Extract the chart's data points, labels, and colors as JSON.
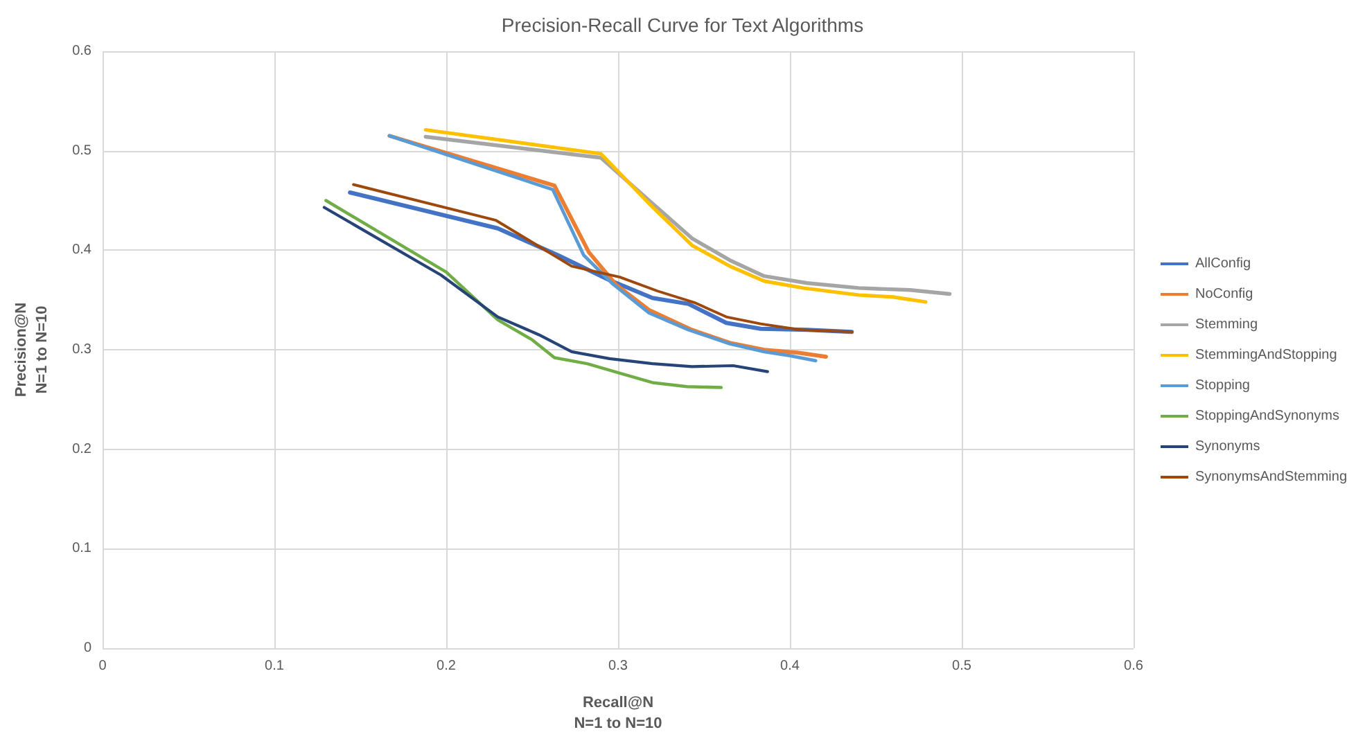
{
  "chart_data": {
    "type": "line",
    "title": "Precision-Recall Curve for Text Algorithms",
    "xlabel": "Recall@N\nN=1 to N=10",
    "ylabel": "Precision@N\nN=1 to N=10",
    "xlim": [
      0,
      0.6
    ],
    "xticks": [
      0,
      0.1,
      0.2,
      0.3,
      0.4,
      0.5,
      0.6
    ],
    "ylim": [
      0,
      0.6
    ],
    "yticks": [
      0,
      0.1,
      0.2,
      0.3,
      0.4,
      0.5,
      0.6
    ],
    "grid": true,
    "legend": "right",
    "marker": "none",
    "line_style": "solid",
    "series": [
      {
        "name": "AllConfig",
        "color": "#4472c4",
        "x": [
          0.144,
          0.23,
          0.265,
          0.295,
          0.32,
          0.341,
          0.363,
          0.383,
          0.41,
          0.436
        ],
        "values": [
          0.458,
          0.422,
          0.395,
          0.37,
          0.352,
          0.346,
          0.327,
          0.321,
          0.32,
          0.318
        ]
      },
      {
        "name": "NoConfig",
        "color": "#ed7d31",
        "x": [
          0.167,
          0.263,
          0.283,
          0.299,
          0.318,
          0.343,
          0.365,
          0.385,
          0.405,
          0.421
        ],
        "values": [
          0.515,
          0.465,
          0.398,
          0.365,
          0.34,
          0.32,
          0.307,
          0.3,
          0.297,
          0.293
        ]
      },
      {
        "name": "Stemming",
        "color": "#a5a5a5",
        "x": [
          0.188,
          0.29,
          0.32,
          0.343,
          0.365,
          0.385,
          0.41,
          0.44,
          0.47,
          0.493
        ],
        "values": [
          0.514,
          0.493,
          0.447,
          0.412,
          0.39,
          0.374,
          0.367,
          0.362,
          0.36,
          0.356
        ]
      },
      {
        "name": "StemmingAndStopping",
        "color": "#ffc000",
        "x": [
          0.188,
          0.29,
          0.318,
          0.343,
          0.365,
          0.385,
          0.408,
          0.44,
          0.46,
          0.479
        ],
        "values": [
          0.521,
          0.497,
          0.447,
          0.405,
          0.384,
          0.369,
          0.362,
          0.355,
          0.353,
          0.348
        ]
      },
      {
        "name": "Stopping",
        "color": "#5b9bd5",
        "x": [
          0.167,
          0.262,
          0.28,
          0.297,
          0.318,
          0.341,
          0.365,
          0.385,
          0.4,
          0.415
        ],
        "values": [
          0.515,
          0.461,
          0.395,
          0.366,
          0.337,
          0.32,
          0.306,
          0.298,
          0.294,
          0.289
        ]
      },
      {
        "name": "StoppingAndSynonyms",
        "color": "#70ad47",
        "x": [
          0.13,
          0.2,
          0.23,
          0.25,
          0.263,
          0.282,
          0.3,
          0.32,
          0.34,
          0.36
        ],
        "values": [
          0.45,
          0.378,
          0.33,
          0.31,
          0.292,
          0.286,
          0.277,
          0.267,
          0.263,
          0.262
        ]
      },
      {
        "name": "Synonyms",
        "color": "#264478",
        "x": [
          0.129,
          0.197,
          0.23,
          0.254,
          0.273,
          0.295,
          0.32,
          0.343,
          0.367,
          0.387
        ],
        "values": [
          0.443,
          0.375,
          0.333,
          0.315,
          0.298,
          0.291,
          0.286,
          0.283,
          0.284,
          0.278
        ]
      },
      {
        "name": "SynonymsAndStemming",
        "color": "#9e480e",
        "x": [
          0.146,
          0.229,
          0.273,
          0.301,
          0.323,
          0.345,
          0.363,
          0.383,
          0.406,
          0.436
        ],
        "values": [
          0.466,
          0.43,
          0.384,
          0.373,
          0.359,
          0.347,
          0.333,
          0.326,
          0.32,
          0.318
        ]
      }
    ]
  }
}
